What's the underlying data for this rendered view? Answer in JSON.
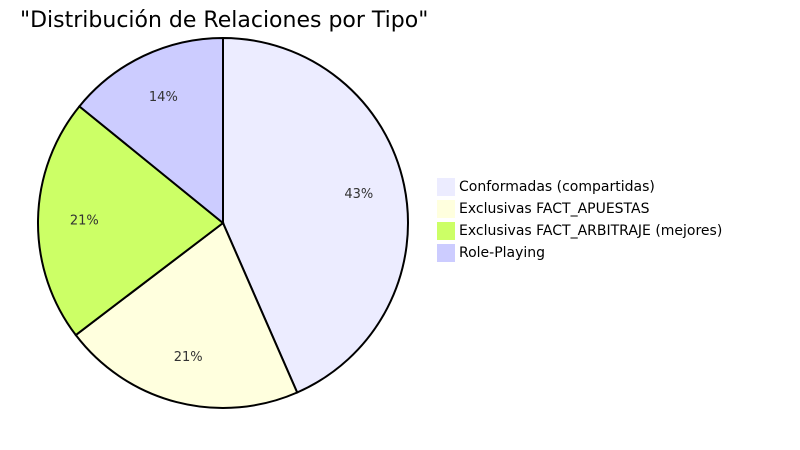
{
  "chart_data": {
    "type": "pie",
    "title": "\"Distribución de Relaciones por Tipo\"",
    "slices": [
      {
        "label": "Conformadas (compartidas)",
        "value": 43,
        "display": "43%",
        "color": "#ececff"
      },
      {
        "label": "Exclusivas FACT_APUESTAS",
        "value": 21,
        "display": "21%",
        "color": "#ffffde"
      },
      {
        "label": "Exclusivas FACT_ARBITRAJE (mejores)",
        "value": 21,
        "display": "21%",
        "color": "#ccff66"
      },
      {
        "label": "Role-Playing",
        "value": 14,
        "display": "14%",
        "color": "#ccccff"
      }
    ],
    "legend_position": "right",
    "stroke_color": "#000000"
  }
}
